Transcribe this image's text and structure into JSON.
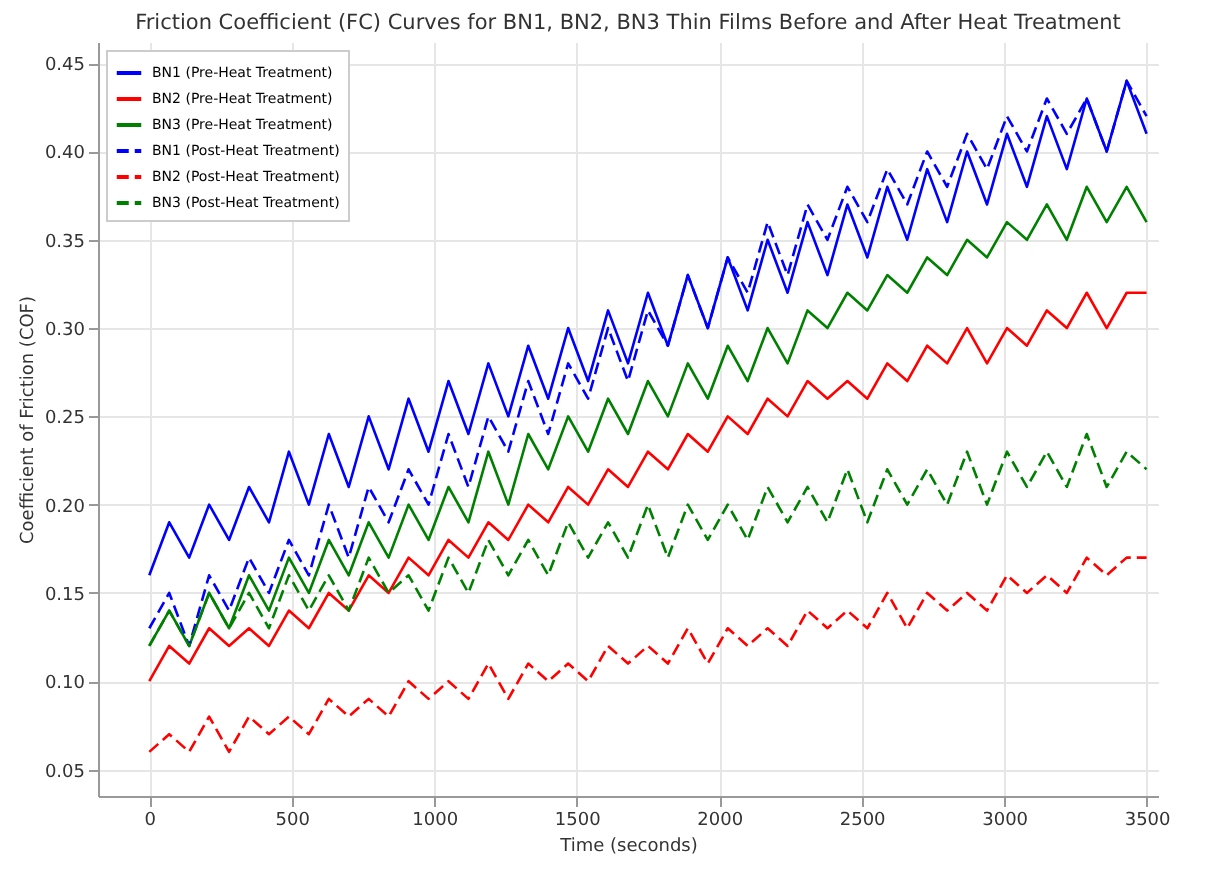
{
  "chart_data": {
    "type": "line",
    "title": "Friction Coefficient (FC) Curves for BN1, BN2, BN3 Thin Films Before and After Heat Treatment",
    "xlabel": "Time (seconds)",
    "ylabel": "Coefficient of Friction (COF)",
    "x": [
      0,
      70,
      140,
      210,
      280,
      350,
      420,
      490,
      560,
      630,
      700,
      770,
      840,
      910,
      980,
      1050,
      1120,
      1190,
      1260,
      1330,
      1400,
      1470,
      1540,
      1610,
      1680,
      1750,
      1820,
      1890,
      1960,
      2030,
      2100,
      2170,
      2240,
      2310,
      2380,
      2450,
      2520,
      2590,
      2660,
      2730,
      2800,
      2870,
      2940,
      3010,
      3080,
      3150,
      3220,
      3290,
      3360,
      3430,
      3500
    ],
    "series": [
      {
        "name": "BN1 (Pre-Heat Treatment)",
        "color": "#0000ff",
        "line_style": "solid",
        "values": [
          0.16,
          0.19,
          0.17,
          0.2,
          0.18,
          0.21,
          0.19,
          0.23,
          0.2,
          0.24,
          0.21,
          0.25,
          0.22,
          0.26,
          0.23,
          0.27,
          0.24,
          0.28,
          0.25,
          0.29,
          0.26,
          0.3,
          0.27,
          0.31,
          0.28,
          0.32,
          0.29,
          0.33,
          0.3,
          0.34,
          0.31,
          0.35,
          0.32,
          0.36,
          0.33,
          0.37,
          0.34,
          0.38,
          0.35,
          0.39,
          0.36,
          0.4,
          0.37,
          0.41,
          0.38,
          0.42,
          0.39,
          0.43,
          0.4,
          0.44,
          0.41
        ]
      },
      {
        "name": "BN2 (Pre-Heat Treatment)",
        "color": "#ff0000",
        "line_style": "solid",
        "values": [
          0.1,
          0.12,
          0.11,
          0.13,
          0.12,
          0.13,
          0.12,
          0.14,
          0.13,
          0.15,
          0.14,
          0.16,
          0.15,
          0.17,
          0.16,
          0.18,
          0.17,
          0.19,
          0.18,
          0.2,
          0.19,
          0.21,
          0.2,
          0.22,
          0.21,
          0.23,
          0.22,
          0.24,
          0.23,
          0.25,
          0.24,
          0.26,
          0.25,
          0.27,
          0.26,
          0.27,
          0.26,
          0.28,
          0.27,
          0.29,
          0.28,
          0.3,
          0.28,
          0.3,
          0.29,
          0.31,
          0.3,
          0.32,
          0.3,
          0.32,
          0.32
        ]
      },
      {
        "name": "BN3 (Pre-Heat Treatment)",
        "color": "#008000",
        "line_style": "solid",
        "values": [
          0.12,
          0.14,
          0.12,
          0.15,
          0.13,
          0.16,
          0.14,
          0.17,
          0.15,
          0.18,
          0.16,
          0.19,
          0.17,
          0.2,
          0.18,
          0.21,
          0.19,
          0.23,
          0.2,
          0.24,
          0.22,
          0.25,
          0.23,
          0.26,
          0.24,
          0.27,
          0.25,
          0.28,
          0.26,
          0.29,
          0.27,
          0.3,
          0.28,
          0.31,
          0.3,
          0.32,
          0.31,
          0.33,
          0.32,
          0.34,
          0.33,
          0.35,
          0.34,
          0.36,
          0.35,
          0.37,
          0.35,
          0.38,
          0.36,
          0.38,
          0.36
        ]
      },
      {
        "name": "BN1 (Post-Heat Treatment)",
        "color": "#0000ff",
        "line_style": "dashed",
        "values": [
          0.13,
          0.15,
          0.12,
          0.16,
          0.14,
          0.17,
          0.15,
          0.18,
          0.16,
          0.2,
          0.17,
          0.21,
          0.19,
          0.22,
          0.2,
          0.24,
          0.21,
          0.25,
          0.23,
          0.27,
          0.24,
          0.28,
          0.26,
          0.3,
          0.27,
          0.31,
          0.29,
          0.33,
          0.3,
          0.34,
          0.32,
          0.36,
          0.33,
          0.37,
          0.35,
          0.38,
          0.36,
          0.39,
          0.37,
          0.4,
          0.38,
          0.41,
          0.39,
          0.42,
          0.4,
          0.43,
          0.41,
          0.43,
          0.4,
          0.44,
          0.42
        ]
      },
      {
        "name": "BN2 (Post-Heat Treatment)",
        "color": "#ff0000",
        "line_style": "dashed",
        "values": [
          0.06,
          0.07,
          0.06,
          0.08,
          0.06,
          0.08,
          0.07,
          0.08,
          0.07,
          0.09,
          0.08,
          0.09,
          0.08,
          0.1,
          0.09,
          0.1,
          0.09,
          0.11,
          0.09,
          0.11,
          0.1,
          0.11,
          0.1,
          0.12,
          0.11,
          0.12,
          0.11,
          0.13,
          0.11,
          0.13,
          0.12,
          0.13,
          0.12,
          0.14,
          0.13,
          0.14,
          0.13,
          0.15,
          0.13,
          0.15,
          0.14,
          0.15,
          0.14,
          0.16,
          0.15,
          0.16,
          0.15,
          0.17,
          0.16,
          0.17,
          0.17
        ]
      },
      {
        "name": "BN3 (Post-Heat Treatment)",
        "color": "#008000",
        "line_style": "dashed",
        "values": [
          0.12,
          0.14,
          0.12,
          0.15,
          0.13,
          0.15,
          0.13,
          0.16,
          0.14,
          0.16,
          0.14,
          0.17,
          0.15,
          0.16,
          0.14,
          0.17,
          0.15,
          0.18,
          0.16,
          0.18,
          0.16,
          0.19,
          0.17,
          0.19,
          0.17,
          0.2,
          0.17,
          0.2,
          0.18,
          0.2,
          0.18,
          0.21,
          0.19,
          0.21,
          0.19,
          0.22,
          0.19,
          0.22,
          0.2,
          0.22,
          0.2,
          0.23,
          0.2,
          0.23,
          0.21,
          0.23,
          0.21,
          0.24,
          0.21,
          0.23,
          0.22
        ]
      }
    ],
    "xlim": [
      -180,
      3540
    ],
    "xticks": [
      0,
      500,
      1000,
      1500,
      2000,
      2500,
      3000,
      3500
    ],
    "ylim": [
      0.035,
      0.462
    ],
    "yticks": [
      {
        "value": 0.05,
        "label": "0.05"
      },
      {
        "value": 0.1,
        "label": "0.10"
      },
      {
        "value": 0.15,
        "label": "0.15"
      },
      {
        "value": 0.2,
        "label": "0.20"
      },
      {
        "value": 0.25,
        "label": "0.25"
      },
      {
        "value": 0.3,
        "label": "0.30"
      },
      {
        "value": 0.35,
        "label": "0.35"
      },
      {
        "value": 0.4,
        "label": "0.40"
      },
      {
        "value": 0.45,
        "label": "0.45"
      }
    ],
    "grid": true,
    "legend": "top left"
  }
}
